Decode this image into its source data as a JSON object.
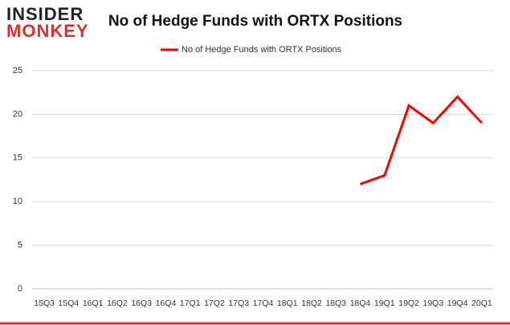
{
  "logo": {
    "top": "INSIDER",
    "bottom": "MONKEY"
  },
  "chart_data": {
    "type": "line",
    "title": "No of Hedge Funds with ORTX Positions",
    "categories": [
      "15Q3",
      "15Q4",
      "16Q1",
      "16Q2",
      "16Q3",
      "16Q4",
      "17Q1",
      "17Q2",
      "17Q3",
      "17Q4",
      "18Q1",
      "18Q2",
      "18Q3",
      "18Q4",
      "19Q1",
      "19Q2",
      "19Q3",
      "19Q4",
      "20Q1"
    ],
    "series": [
      {
        "name": "No of Hedge Funds with ORTX Positions",
        "color": "#ff0000",
        "values": [
          null,
          null,
          null,
          null,
          null,
          null,
          null,
          null,
          null,
          null,
          null,
          null,
          null,
          12,
          13,
          21,
          19,
          22,
          19
        ]
      }
    ],
    "ylim": [
      0,
      25
    ],
    "yticks": [
      0,
      5,
      10,
      15,
      20,
      25
    ],
    "grid": true,
    "legend": "top"
  }
}
